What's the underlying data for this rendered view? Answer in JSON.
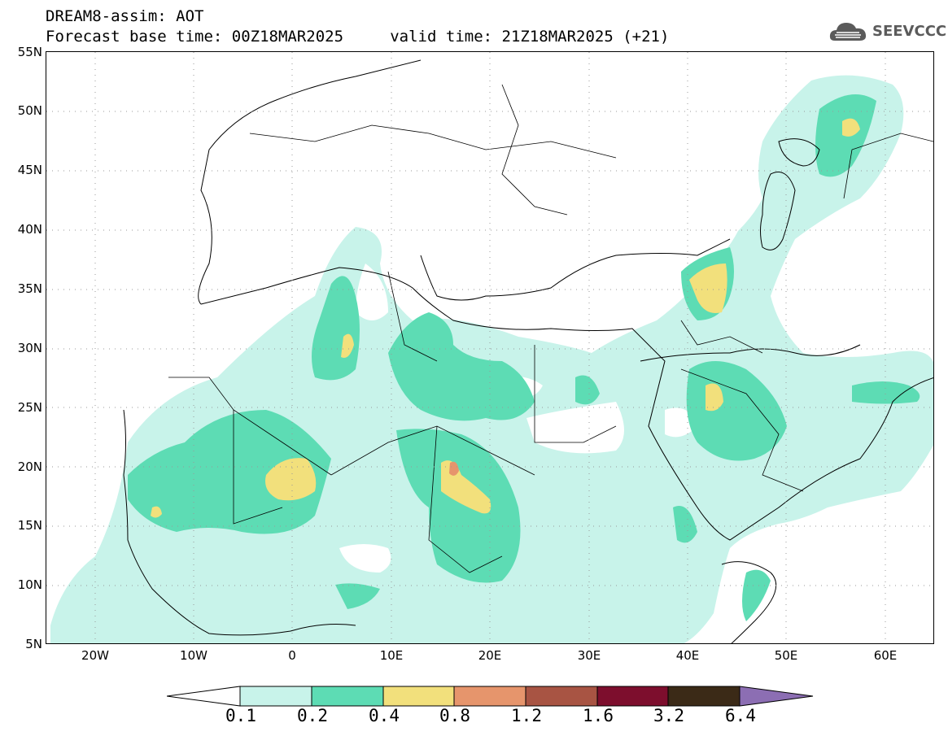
{
  "header": {
    "line1": "DREAM8-assim: AOT",
    "line2": "Forecast base time: 00Z18MAR2025     valid time: 21Z18MAR2025 (+21)"
  },
  "logo": {
    "text": "SEEVCCC",
    "icon": "cloud-icon"
  },
  "map": {
    "projection": "cylindrical",
    "lon_range": [
      -25,
      65
    ],
    "lat_range": [
      5,
      55
    ],
    "lat_labels": [
      "55N",
      "50N",
      "45N",
      "40N",
      "35N",
      "30N",
      "25N",
      "20N",
      "15N",
      "10N",
      "5N"
    ],
    "lon_labels": [
      "20W",
      "10W",
      "0",
      "10E",
      "20E",
      "30E",
      "40E",
      "50E",
      "60E"
    ],
    "grid": true,
    "variable": "AOT"
  },
  "colorbar": {
    "thresholds": [
      "0.1",
      "0.2",
      "0.4",
      "0.8",
      "1.2",
      "1.6",
      "3.2",
      "6.4"
    ],
    "colors": {
      "below": "#ffffff",
      "c1": "#c8f3ea",
      "c2": "#5ddcb4",
      "c3": "#f2e07c",
      "c4": "#e6956c",
      "c5": "#a85443",
      "c6": "#7d0e2d",
      "c7": "#3b2a17",
      "above": "#8c6eb3"
    }
  }
}
